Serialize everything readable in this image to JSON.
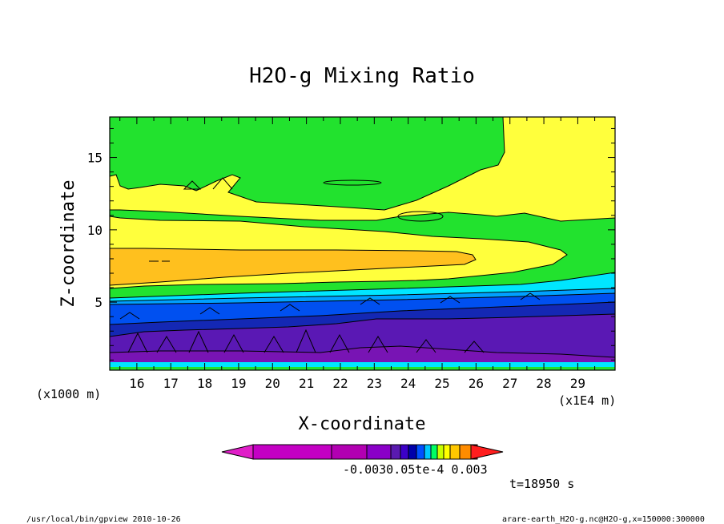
{
  "chart_data": {
    "type": "heatmap",
    "title": "H2O-g Mixing Ratio",
    "xlabel": "X-coordinate",
    "ylabel": "Z-coordinate",
    "x_unit_label": "(x1E4 m)",
    "y_unit_label": "(x1000 m)",
    "xlim": [
      15.2,
      30.1
    ],
    "ylim": [
      0.3,
      17.8
    ],
    "x_ticks": [
      "16",
      "17",
      "18",
      "19",
      "20",
      "21",
      "22",
      "23",
      "24",
      "25",
      "26",
      "27",
      "28",
      "29"
    ],
    "x_tick_values": [
      16,
      17,
      18,
      19,
      20,
      21,
      22,
      23,
      24,
      25,
      26,
      27,
      28,
      29
    ],
    "y_ticks": [
      "5",
      "10",
      "15"
    ],
    "y_tick_values": [
      5,
      10,
      15
    ],
    "colorbar": {
      "label_text": "-0.0030.05te-4  0.003",
      "colors": [
        "#c400c4",
        "#b200b2",
        "#8a00c8",
        "#5a1ab0",
        "#3c00c8",
        "#0000aa",
        "#0050ff",
        "#00c8ff",
        "#00ff64",
        "#c8ff00",
        "#ffff00",
        "#ffc800",
        "#ff8c00",
        "#ff0000"
      ]
    },
    "time_label": "t=18950 s"
  },
  "footer": {
    "left": "/usr/local/bin/gpview  2010-10-26",
    "right": "arare-earth_H2O-g.nc@H2O-g,x=150000:300000"
  },
  "colors": {
    "green": "#22e22e",
    "yellow": "#ffff3c",
    "orange": "#ffc01e",
    "cyan": "#00e6ff",
    "light_blue": "#00a0ff",
    "blue": "#0050f0",
    "dark_blue": "#1428b4",
    "purple": "#5a18b4",
    "violet": "#7814b4",
    "magenta": "#9414a0"
  }
}
